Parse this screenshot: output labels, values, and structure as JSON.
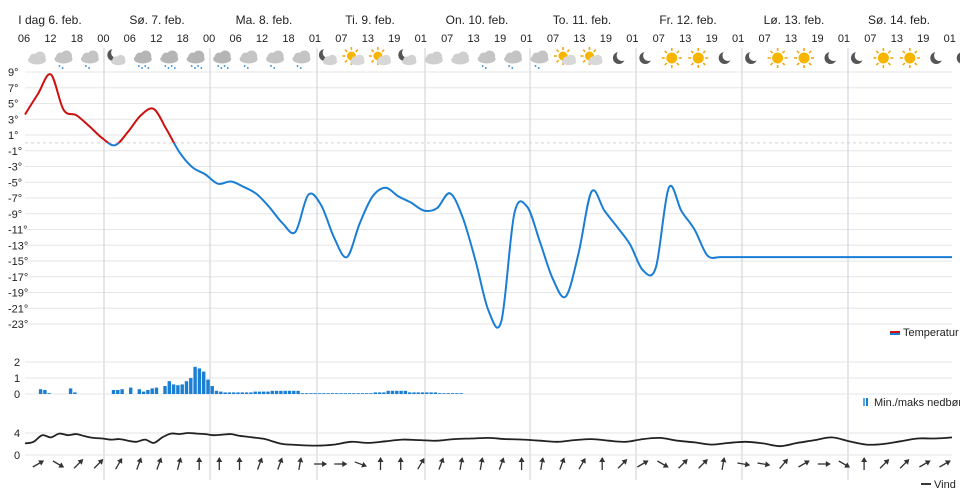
{
  "chart_data": [
    {
      "type": "line",
      "panel": "temperature",
      "days": [
        "I dag 6. feb.",
        "Sø. 7. feb.",
        "Ma. 8. feb.",
        "Ti. 9. feb.",
        "On. 10. feb.",
        "To. 11. feb.",
        "Fr. 12. feb.",
        "Lø. 13. feb.",
        "Sø. 14. feb."
      ],
      "hour_labels": [
        "06",
        "12",
        "18",
        "00",
        "06",
        "12",
        "18",
        "00",
        "06",
        "12",
        "18",
        "01",
        "07",
        "13",
        "19",
        "01",
        "07",
        "13",
        "19",
        "01",
        "07",
        "13",
        "19",
        "01",
        "07",
        "13",
        "19",
        "01",
        "07",
        "13",
        "19",
        "01",
        "07",
        "13",
        "19",
        "01",
        "07",
        "13",
        "19",
        "01"
      ],
      "icons": [
        "cloud",
        "cloud-light-snow",
        "cloud-light-snow",
        "night-cloud",
        "cloud-snow",
        "cloud-snow",
        "cloud-snow",
        "cloud-snow",
        "cloud-light-snow",
        "cloud-light-snow",
        "cloud-light-snow",
        "night-cloud",
        "sun-cloud",
        "sun-cloud",
        "night-cloud",
        "cloud",
        "cloud",
        "cloud-light-snow",
        "cloud-light-snow",
        "cloud-light-snow",
        "sun-cloud",
        "sun-cloud",
        "moon",
        "moon",
        "sun",
        "sun",
        "moon",
        "moon",
        "sun",
        "sun",
        "moon",
        "moon",
        "sun",
        "sun",
        "moon",
        "moon",
        "sun",
        "sun",
        "moon",
        "moon"
      ],
      "y_ticks": [
        "9°",
        "7°",
        "5°",
        "3°",
        "1°",
        "-1°",
        "-3°",
        "-5°",
        "-7°",
        "-9°",
        "-11°",
        "-13°",
        "-15°",
        "-17°",
        "-19°",
        "-21°",
        "-23°"
      ],
      "ylim": [
        -23,
        9
      ],
      "freezing_level": 0,
      "series": [
        {
          "name": "Temperatur",
          "color_above_zero": "#cc1111",
          "color_below_zero": "#1a7fd4",
          "x_hours": [
            0,
            3,
            6,
            9,
            12,
            15,
            18,
            21,
            24,
            27,
            30,
            33,
            36,
            39,
            42,
            45,
            48,
            51,
            54,
            57,
            60,
            63,
            66,
            69,
            72,
            75,
            78,
            81,
            84,
            87,
            90,
            93,
            96,
            99,
            102,
            105,
            108,
            111,
            114,
            117,
            120,
            123,
            126,
            129,
            132,
            135,
            138,
            141,
            144,
            147,
            150,
            153,
            156,
            159,
            162,
            165,
            168,
            171,
            174,
            177,
            180,
            183,
            186,
            189,
            192,
            195,
            198,
            201,
            204,
            207,
            210,
            213,
            216
          ],
          "values": [
            3.6,
            6.2,
            8.7,
            4.2,
            3.5,
            2.1,
            0.6,
            -0.3,
            1.4,
            3.5,
            4.3,
            1.7,
            -1.2,
            -3.1,
            -4.0,
            -5.2,
            -4.9,
            -5.6,
            -6.5,
            -8.2,
            -10.2,
            -11.3,
            -6.6,
            -7.9,
            -12.0,
            -14.5,
            -10.2,
            -6.8,
            -5.7,
            -6.8,
            -7.6,
            -8.6,
            -8.3,
            -6.4,
            -9.5,
            -15.0,
            -21.3,
            -22.6,
            -9.0,
            -8.1,
            -12.6,
            -17.3,
            -19.5,
            -14.0,
            -6.2,
            -8.6,
            -10.7,
            -12.9,
            -16.2,
            -15.8,
            -5.7,
            -8.7,
            -11.0,
            -14.3,
            -14.5,
            -14.5,
            -14.5,
            -14.5,
            -14.5,
            -14.5,
            -14.5,
            -14.5,
            -14.5,
            -14.5,
            -14.5,
            -14.5,
            -14.5,
            -14.5,
            -14.5,
            -14.5,
            -14.5,
            -14.5,
            -14.5
          ]
        }
      ],
      "legend": "Temperatur",
      "legend_position": "bottom-right",
      "grid": true
    },
    {
      "type": "bar",
      "panel": "precipitation",
      "y_ticks": [
        "2",
        "1",
        "0"
      ],
      "ylim": [
        0,
        2
      ],
      "series": [
        {
          "name": "Min./maks nedbør",
          "color": "#1a7fd4",
          "x_hours": [
            3,
            4,
            5,
            10,
            11,
            20,
            21,
            22,
            24,
            26,
            27,
            28,
            29,
            30,
            32,
            33,
            34,
            35,
            36,
            37,
            38,
            39,
            40,
            41,
            42,
            43,
            44,
            45,
            46,
            47,
            48,
            49,
            50,
            51,
            52,
            53,
            54,
            55,
            56,
            57,
            58,
            59,
            60,
            61,
            62,
            63,
            64,
            65,
            66,
            67,
            68,
            69,
            70,
            71,
            72,
            73,
            74,
            75,
            76,
            77,
            78,
            79,
            80,
            81,
            82,
            83,
            84,
            85,
            86,
            87,
            88,
            89,
            90,
            91,
            92,
            93,
            94,
            95,
            96,
            97,
            98,
            99,
            100,
            101
          ],
          "values": [
            0.3,
            0.25,
            0.05,
            0.35,
            0.1,
            0.25,
            0.25,
            0.3,
            0.4,
            0.3,
            0.15,
            0.25,
            0.35,
            0.4,
            0.5,
            0.8,
            0.6,
            0.55,
            0.6,
            0.8,
            1.0,
            1.7,
            1.6,
            1.4,
            0.9,
            0.5,
            0.2,
            0.15,
            0.1,
            0.1,
            0.1,
            0.1,
            0.1,
            0.1,
            0.1,
            0.15,
            0.15,
            0.15,
            0.15,
            0.2,
            0.2,
            0.2,
            0.2,
            0.2,
            0.2,
            0.2,
            0.05,
            0.05,
            0.05,
            0.05,
            0.05,
            0.05,
            0.05,
            0.05,
            0.05,
            0.05,
            0.05,
            0.05,
            0.05,
            0.05,
            0.05,
            0.05,
            0.05,
            0.1,
            0.1,
            0.1,
            0.2,
            0.2,
            0.2,
            0.2,
            0.2,
            0.1,
            0.1,
            0.1,
            0.1,
            0.1,
            0.1,
            0.1,
            0.05,
            0.05,
            0.05,
            0.05,
            0.05,
            0.05
          ]
        }
      ],
      "legend": "Min./maks nedbør",
      "legend_position": "bottom-right"
    },
    {
      "type": "line",
      "panel": "wind",
      "y_ticks": [
        "4",
        "0"
      ],
      "ylim": [
        0,
        6
      ],
      "series": [
        {
          "name": "Vind",
          "color": "#222222",
          "x_hours": [
            0,
            2,
            4,
            6,
            8,
            10,
            12,
            14,
            16,
            18,
            20,
            22,
            24,
            26,
            28,
            30,
            32,
            34,
            36,
            38,
            40,
            42,
            44,
            46,
            48,
            50,
            52,
            54,
            56,
            58,
            60,
            64,
            68,
            72,
            76,
            80,
            84,
            88,
            92,
            96,
            100,
            104,
            108,
            112,
            116,
            120,
            124,
            128,
            132,
            136,
            140,
            144,
            148,
            152,
            156,
            160,
            164,
            168,
            172,
            176,
            180,
            184,
            188,
            192,
            196,
            200,
            204,
            208,
            212,
            216
          ],
          "values": [
            2.1,
            2.4,
            3.6,
            3.2,
            3.9,
            3.6,
            3.8,
            3.4,
            3.1,
            3.0,
            2.8,
            2.9,
            2.6,
            2.4,
            2.8,
            2.2,
            3.2,
            3.9,
            3.8,
            4.0,
            3.9,
            3.8,
            3.6,
            3.7,
            3.8,
            3.5,
            3.3,
            3.1,
            2.9,
            2.4,
            2.0,
            1.8,
            1.7,
            1.9,
            2.4,
            2.2,
            2.5,
            2.8,
            2.7,
            2.6,
            2.9,
            3.0,
            3.1,
            2.9,
            2.8,
            2.6,
            2.4,
            2.7,
            2.9,
            2.6,
            2.4,
            2.9,
            3.1,
            2.6,
            2.3,
            1.9,
            2.2,
            2.4,
            2.1,
            1.6,
            2.2,
            2.7,
            3.2,
            2.5,
            1.9,
            2.0,
            2.5,
            3.0,
            3.0,
            3.2
          ]
        }
      ],
      "wind_directions_deg": [
        240,
        300,
        225,
        225,
        210,
        200,
        200,
        195,
        180,
        180,
        180,
        200,
        200,
        190,
        270,
        270,
        290,
        180,
        180,
        210,
        200,
        190,
        190,
        200,
        180,
        190,
        200,
        210,
        180,
        225,
        240,
        300,
        225,
        225,
        190,
        280,
        280,
        220,
        240,
        270,
        300,
        180,
        225,
        225,
        240,
        240
      ],
      "legend": "Vind",
      "legend_position": "bottom-right"
    }
  ],
  "colors": {
    "temp_warm": "#cc1111",
    "temp_cold": "#1a7fd4",
    "precip": "#1a7fd4",
    "wind": "#222222",
    "grid": "#e6e6e6",
    "day_divider": "#c8d2da"
  }
}
